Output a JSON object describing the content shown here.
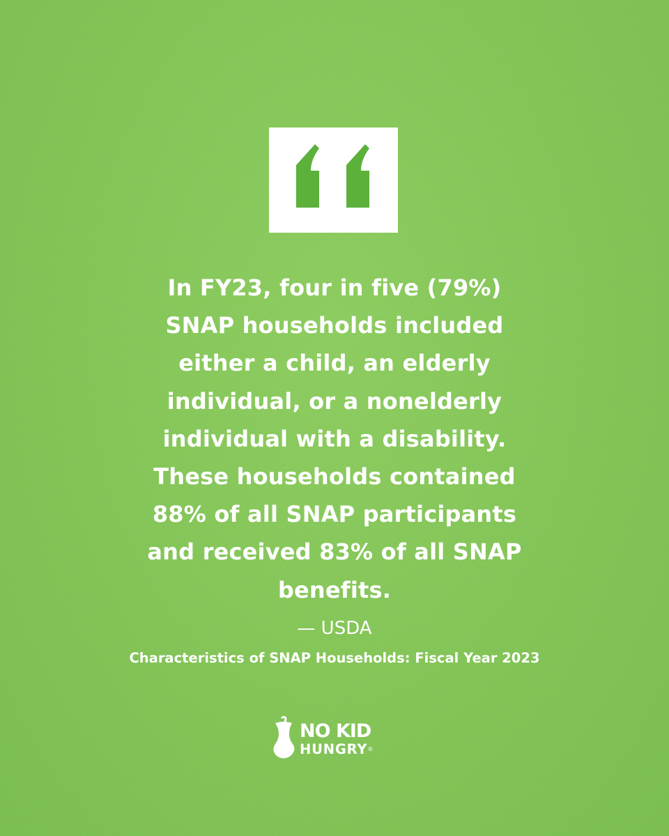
{
  "colors": {
    "background": "#79c04a",
    "accent": "#5bb13a",
    "text": "#ffffff",
    "quote_box": "#ffffff"
  },
  "quote_icon": "open-quote-icon",
  "quote": {
    "lines": [
      "In FY23, four in five (79%)",
      "SNAP households included",
      "either a child, an elderly",
      "individual, or a nonelderly",
      "individual with a disability.",
      "These households contained",
      "88% of all SNAP participants",
      "and received 83% of all SNAP",
      "benefits."
    ]
  },
  "attribution": "— USDA",
  "source": "Characteristics of SNAP Households: Fiscal Year 2023",
  "logo": {
    "icon": "apple-core-icon",
    "line1": "NO KID",
    "line2": "HUNGRY",
    "registered": "®"
  }
}
